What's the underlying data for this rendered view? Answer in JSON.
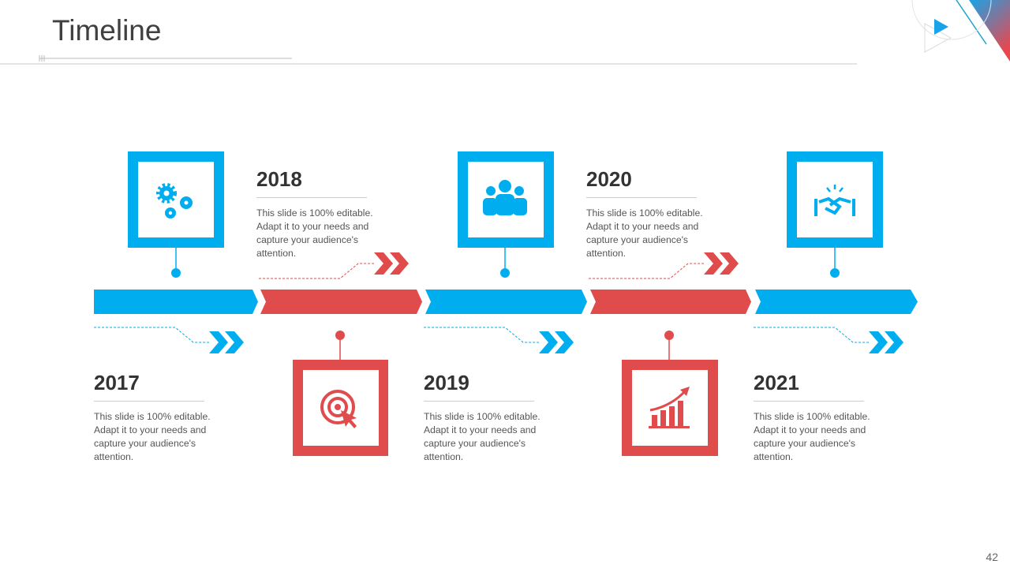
{
  "title": "Timeline",
  "page_number": "42",
  "colors": {
    "blue": "#00aeef",
    "red": "#e04b4b"
  },
  "milestones": [
    {
      "year": "2017",
      "text": "This slide is 100% editable. Adapt it to your needs and capture your audience's attention.",
      "icon": "gears-icon",
      "color": "blue"
    },
    {
      "year": "2018",
      "text": "This slide is 100% editable. Adapt it to your needs and capture your audience's attention.",
      "icon": "target-icon",
      "color": "red"
    },
    {
      "year": "2019",
      "text": "This slide is 100% editable. Adapt it to your needs and capture your audience's attention.",
      "icon": "team-icon",
      "color": "blue"
    },
    {
      "year": "2020",
      "text": "This slide is 100% editable. Adapt it to your needs and capture your audience's attention.",
      "icon": "growth-chart-icon",
      "color": "red"
    },
    {
      "year": "2021",
      "text": "This slide is 100% editable. Adapt it to your needs and capture your audience's attention.",
      "icon": "handshake-icon",
      "color": "blue"
    }
  ]
}
